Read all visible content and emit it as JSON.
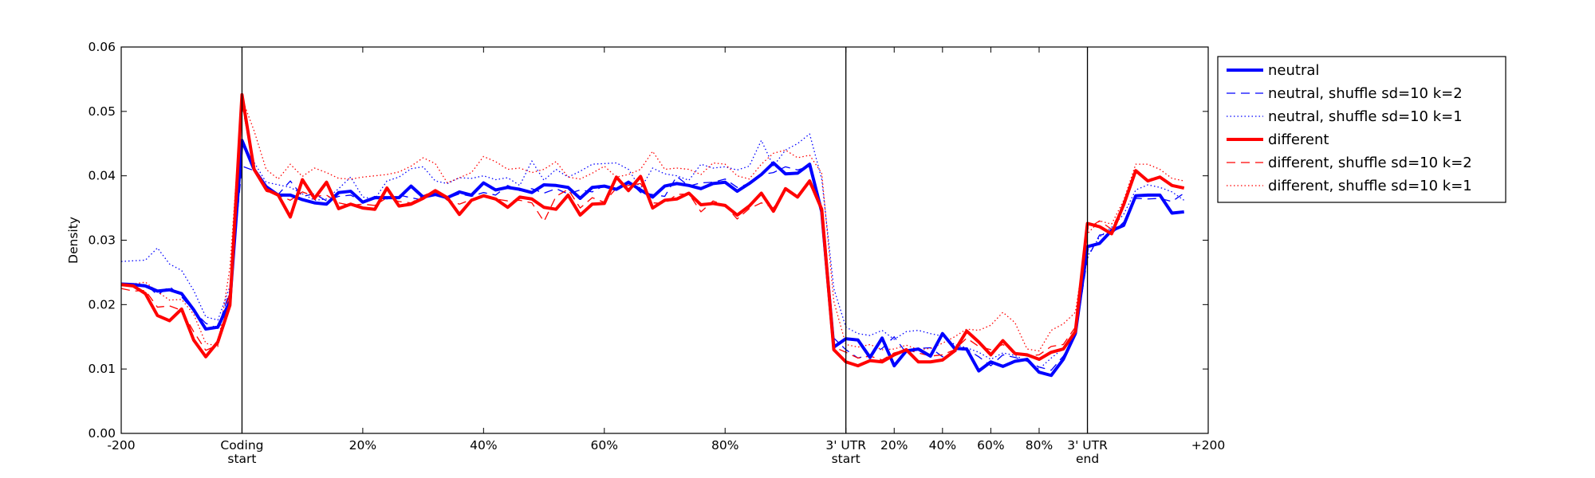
{
  "chart_data": {
    "type": "line",
    "ylabel": "Density",
    "ylim": [
      0,
      0.06
    ],
    "yticks": [
      "0.00",
      "0.01",
      "0.02",
      "0.03",
      "0.04",
      "0.05",
      "0.06"
    ],
    "x_tick_labels": [
      {
        "x": 0,
        "lines": [
          "-200"
        ]
      },
      {
        "x": 20,
        "lines": [
          "Coding",
          "start"
        ]
      },
      {
        "x": 40,
        "lines": [
          "20%"
        ]
      },
      {
        "x": 60,
        "lines": [
          "40%"
        ]
      },
      {
        "x": 80,
        "lines": [
          "60%"
        ]
      },
      {
        "x": 100,
        "lines": [
          "80%"
        ]
      },
      {
        "x": 120,
        "lines": [
          "3' UTR",
          "start"
        ]
      },
      {
        "x": 128,
        "lines": [
          "20%"
        ]
      },
      {
        "x": 136,
        "lines": [
          "40%"
        ]
      },
      {
        "x": 144,
        "lines": [
          "60%"
        ]
      },
      {
        "x": 152,
        "lines": [
          "80%"
        ]
      },
      {
        "x": 160,
        "lines": [
          "3' UTR",
          "end"
        ]
      },
      {
        "x": 180,
        "lines": [
          "+200"
        ]
      }
    ],
    "xlim": [
      0,
      180
    ],
    "region_boundaries": [
      20,
      120,
      160
    ],
    "legend": {
      "position": "outside-top-right"
    },
    "series": [
      {
        "name": "neutral",
        "color": "#0000ff",
        "style": "solid",
        "width": 4,
        "x_step": 2,
        "values": [
          0.0232,
          0.0231,
          0.0229,
          0.0221,
          0.0223,
          0.0217,
          0.0192,
          0.0162,
          0.0165,
          0.0205,
          0.0455,
          0.041,
          0.0383,
          0.037,
          0.037,
          0.0363,
          0.0358,
          0.0356,
          0.0374,
          0.0376,
          0.0359,
          0.0366,
          0.0366,
          0.0366,
          0.0384,
          0.0367,
          0.0371,
          0.0366,
          0.0375,
          0.037,
          0.0389,
          0.0378,
          0.0382,
          0.0379,
          0.0374,
          0.0386,
          0.0385,
          0.0382,
          0.0365,
          0.0382,
          0.0384,
          0.0379,
          0.039,
          0.0378,
          0.0367,
          0.0384,
          0.0388,
          0.0385,
          0.038,
          0.0388,
          0.039,
          0.0376,
          0.0388,
          0.0402,
          0.042,
          0.0403,
          0.0404,
          0.0418,
          0.0344,
          0.0134,
          0.0147,
          0.0145,
          0.0118,
          0.0148,
          0.0105,
          0.0128,
          0.0131,
          0.012,
          0.0155,
          0.0132,
          0.0131,
          0.0097,
          0.0111,
          0.0104,
          0.0112,
          0.0115,
          0.0095,
          0.009,
          0.0115,
          0.0155,
          0.029,
          0.0295,
          0.0315,
          0.0323,
          0.0369,
          0.037,
          0.037,
          0.0342,
          0.0344
        ]
      },
      {
        "name": "neutral, shuffle sd=10 k=2",
        "color": "#0000ff",
        "style": "dashed",
        "width": 1.3,
        "x_step": 2,
        "values": [
          0.023,
          0.0228,
          0.0232,
          0.0215,
          0.0228,
          0.0212,
          0.019,
          0.0171,
          0.0163,
          0.0222,
          0.0415,
          0.0408,
          0.0385,
          0.0371,
          0.0392,
          0.0368,
          0.0372,
          0.0361,
          0.0368,
          0.037,
          0.036,
          0.0368,
          0.0364,
          0.037,
          0.0366,
          0.0362,
          0.0376,
          0.0365,
          0.0372,
          0.0368,
          0.0374,
          0.037,
          0.0385,
          0.0377,
          0.038,
          0.0373,
          0.038,
          0.0372,
          0.0378,
          0.0375,
          0.0385,
          0.0379,
          0.0392,
          0.0374,
          0.0371,
          0.0368,
          0.0399,
          0.0384,
          0.0389,
          0.039,
          0.0395,
          0.0382,
          0.0388,
          0.0402,
          0.0405,
          0.0414,
          0.0409,
          0.0415,
          0.0346,
          0.0148,
          0.013,
          0.0117,
          0.0122,
          0.0132,
          0.015,
          0.0125,
          0.0132,
          0.0133,
          0.0119,
          0.0127,
          0.0131,
          0.0119,
          0.0105,
          0.0122,
          0.0118,
          0.0112,
          0.0103,
          0.0098,
          0.012,
          0.0151,
          0.0272,
          0.0308,
          0.031,
          0.0328,
          0.0365,
          0.0364,
          0.0365,
          0.036,
          0.0373
        ]
      },
      {
        "name": "neutral, shuffle sd=10 k=1",
        "color": "#0000ff",
        "style": "dotted",
        "width": 1.3,
        "x_step": 2,
        "values": [
          0.0267,
          0.0268,
          0.0269,
          0.0288,
          0.0263,
          0.0253,
          0.0222,
          0.0181,
          0.0176,
          0.0228,
          0.0449,
          0.0421,
          0.039,
          0.0386,
          0.0382,
          0.0372,
          0.0362,
          0.0364,
          0.038,
          0.0398,
          0.0367,
          0.0364,
          0.0392,
          0.0398,
          0.0411,
          0.0414,
          0.0392,
          0.0388,
          0.0397,
          0.0396,
          0.04,
          0.0394,
          0.0397,
          0.0385,
          0.0423,
          0.0393,
          0.041,
          0.0398,
          0.0407,
          0.0418,
          0.0419,
          0.042,
          0.041,
          0.038,
          0.0412,
          0.0403,
          0.04,
          0.0393,
          0.0418,
          0.0412,
          0.0414,
          0.0409,
          0.0415,
          0.0455,
          0.0415,
          0.044,
          0.045,
          0.0465,
          0.0395,
          0.0225,
          0.0165,
          0.0155,
          0.0152,
          0.016,
          0.0146,
          0.0158,
          0.016,
          0.0155,
          0.0151,
          0.0138,
          0.0133,
          0.0126,
          0.0115,
          0.0125,
          0.0121,
          0.0112,
          0.01,
          0.0117,
          0.0132,
          0.016,
          0.0275,
          0.0305,
          0.032,
          0.034,
          0.0378,
          0.0386,
          0.0382,
          0.0375,
          0.0362
        ]
      },
      {
        "name": "different",
        "color": "#ff0000",
        "style": "solid",
        "width": 4,
        "x_step": 2,
        "values": [
          0.0231,
          0.0229,
          0.0217,
          0.0183,
          0.0175,
          0.0193,
          0.0145,
          0.0119,
          0.0142,
          0.0199,
          0.0526,
          0.041,
          0.0379,
          0.037,
          0.0336,
          0.0394,
          0.0365,
          0.039,
          0.0349,
          0.0356,
          0.035,
          0.0348,
          0.0381,
          0.0353,
          0.0356,
          0.0365,
          0.0377,
          0.0366,
          0.034,
          0.0362,
          0.0369,
          0.0364,
          0.0351,
          0.0367,
          0.0364,
          0.0351,
          0.0348,
          0.037,
          0.0339,
          0.0356,
          0.0357,
          0.0398,
          0.0377,
          0.0399,
          0.035,
          0.0362,
          0.0364,
          0.0373,
          0.0355,
          0.0357,
          0.0354,
          0.0339,
          0.0353,
          0.0373,
          0.0345,
          0.038,
          0.0367,
          0.0392,
          0.0348,
          0.013,
          0.0111,
          0.0105,
          0.0113,
          0.0111,
          0.0122,
          0.013,
          0.0111,
          0.0111,
          0.0114,
          0.0128,
          0.0159,
          0.0142,
          0.0122,
          0.0144,
          0.0124,
          0.0122,
          0.0115,
          0.0126,
          0.0131,
          0.0158,
          0.0326,
          0.0321,
          0.031,
          0.0355,
          0.0408,
          0.0392,
          0.0398,
          0.0385,
          0.0381
        ]
      },
      {
        "name": "different, shuffle sd=10 k=2",
        "color": "#ff0000",
        "style": "dashed",
        "width": 1.3,
        "x_step": 2,
        "values": [
          0.0225,
          0.0221,
          0.0222,
          0.0196,
          0.0198,
          0.0191,
          0.0158,
          0.0129,
          0.0137,
          0.0222,
          0.0512,
          0.0408,
          0.0376,
          0.037,
          0.0362,
          0.0375,
          0.0368,
          0.037,
          0.0358,
          0.0354,
          0.0356,
          0.0354,
          0.0366,
          0.036,
          0.0358,
          0.0369,
          0.0377,
          0.0362,
          0.0356,
          0.0363,
          0.0368,
          0.0364,
          0.0361,
          0.0362,
          0.0358,
          0.0329,
          0.0368,
          0.0379,
          0.035,
          0.0366,
          0.0359,
          0.0381,
          0.0385,
          0.0388,
          0.0358,
          0.0357,
          0.0371,
          0.0372,
          0.0344,
          0.0361,
          0.0354,
          0.0333,
          0.0349,
          0.0358,
          0.035,
          0.0378,
          0.037,
          0.0387,
          0.0349,
          0.0134,
          0.0126,
          0.0117,
          0.012,
          0.0114,
          0.0125,
          0.013,
          0.0125,
          0.012,
          0.0122,
          0.013,
          0.0148,
          0.0135,
          0.013,
          0.0138,
          0.0125,
          0.012,
          0.0122,
          0.0135,
          0.0138,
          0.0165,
          0.0318,
          0.033,
          0.0317,
          0.0356,
          0.0405,
          0.0395,
          0.0397,
          0.0383,
          0.0382
        ]
      },
      {
        "name": "different, shuffle sd=10 k=1",
        "color": "#ff0000",
        "style": "dotted",
        "width": 1.3,
        "x_step": 2,
        "values": [
          0.023,
          0.0232,
          0.0235,
          0.022,
          0.0207,
          0.0208,
          0.0185,
          0.014,
          0.0135,
          0.0258,
          0.052,
          0.047,
          0.041,
          0.0395,
          0.0418,
          0.0399,
          0.0412,
          0.0405,
          0.0396,
          0.0395,
          0.0398,
          0.04,
          0.0402,
          0.0406,
          0.0415,
          0.0428,
          0.0419,
          0.0389,
          0.0397,
          0.0405,
          0.043,
          0.0422,
          0.041,
          0.0412,
          0.0405,
          0.041,
          0.0422,
          0.0398,
          0.0395,
          0.0404,
          0.0415,
          0.0398,
          0.0402,
          0.041,
          0.0438,
          0.041,
          0.0412,
          0.041,
          0.0402,
          0.042,
          0.0418,
          0.04,
          0.0395,
          0.0418,
          0.0435,
          0.044,
          0.0428,
          0.0432,
          0.0404,
          0.0205,
          0.0138,
          0.0134,
          0.0138,
          0.013,
          0.0131,
          0.0137,
          0.013,
          0.0132,
          0.014,
          0.015,
          0.0162,
          0.016,
          0.0168,
          0.0188,
          0.0172,
          0.0131,
          0.0128,
          0.016,
          0.017,
          0.0188,
          0.031,
          0.033,
          0.0325,
          0.0362,
          0.0418,
          0.0418,
          0.041,
          0.0396,
          0.0392
        ]
      }
    ]
  }
}
